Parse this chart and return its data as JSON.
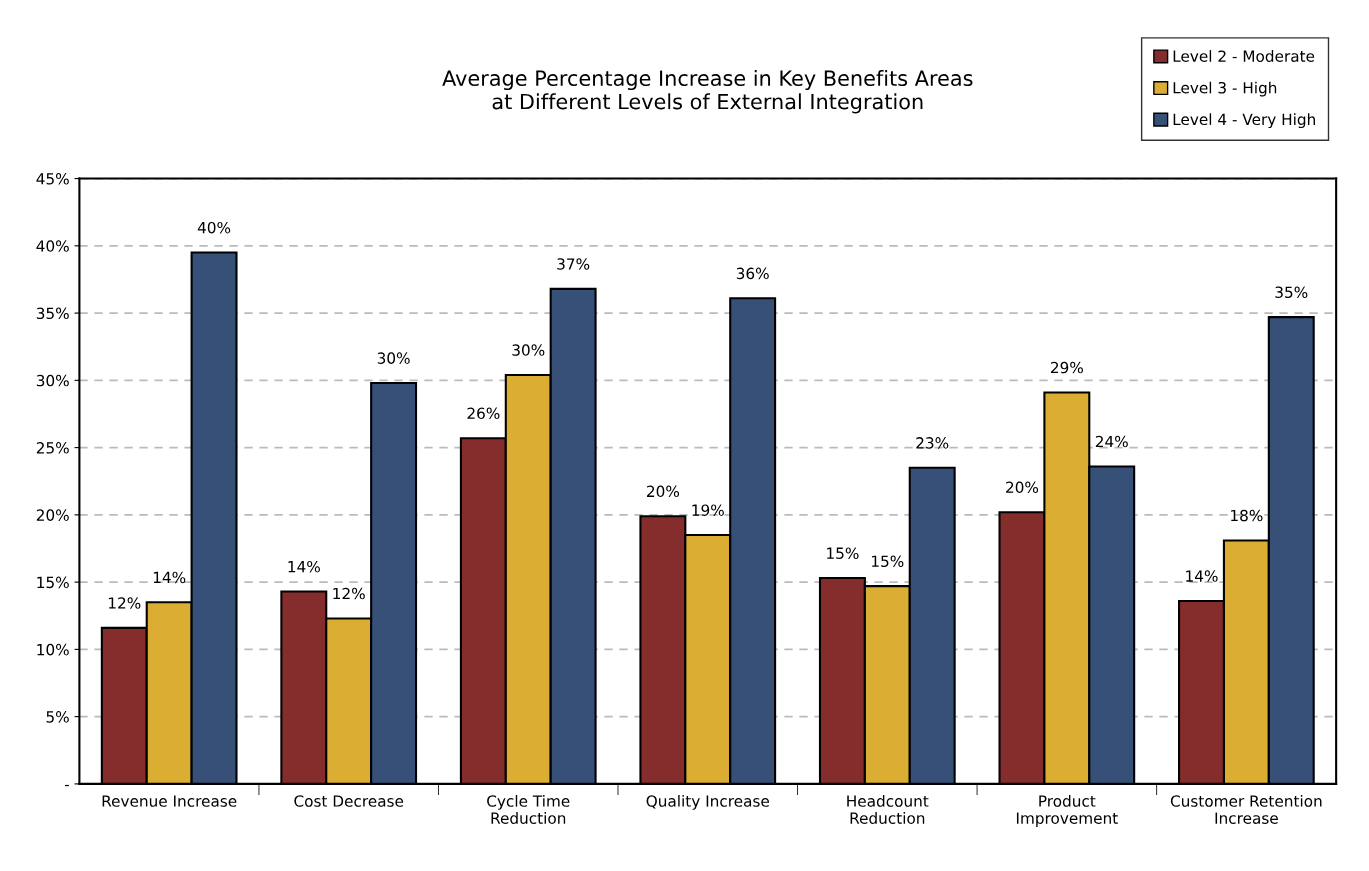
{
  "chart_data": {
    "type": "bar",
    "title": "Average Percentage Increase in Key Benefits Areas\nat Different Levels of External Integration",
    "categories": [
      "Revenue Increase",
      "Cost Decrease",
      "Cycle Time\nReduction",
      "Quality Increase",
      "Headcount\nReduction",
      "Product\nImprovement",
      "Customer Retention\nIncrease"
    ],
    "series": [
      {
        "name": "Level 2 - Moderate",
        "color": "#852c2c",
        "values": [
          11.6,
          14.3,
          25.7,
          19.9,
          15.3,
          20.2,
          13.6
        ],
        "value_labels": [
          "12%",
          "14%",
          "26%",
          "20%",
          "15%",
          "20%",
          "14%"
        ]
      },
      {
        "name": "Level 3 - High",
        "color": "#dbae33",
        "values": [
          13.5,
          12.3,
          30.4,
          18.5,
          14.7,
          29.1,
          18.1
        ],
        "value_labels": [
          "14%",
          "12%",
          "30%",
          "19%",
          "15%",
          "29%",
          "18%"
        ]
      },
      {
        "name": "Level 4 - Very High",
        "color": "#375078",
        "values": [
          39.5,
          29.8,
          36.8,
          36.1,
          23.5,
          23.6,
          34.7
        ],
        "value_labels": [
          "40%",
          "30%",
          "37%",
          "36%",
          "23%",
          "24%",
          "35%"
        ]
      }
    ],
    "ylim": [
      0,
      45
    ],
    "yticks": [
      {
        "value": 0,
        "label": "-"
      },
      {
        "value": 5,
        "label": "5%"
      },
      {
        "value": 10,
        "label": "10%"
      },
      {
        "value": 15,
        "label": "15%"
      },
      {
        "value": 20,
        "label": "20%"
      },
      {
        "value": 25,
        "label": "25%"
      },
      {
        "value": 30,
        "label": "30%"
      },
      {
        "value": 35,
        "label": "35%"
      },
      {
        "value": 40,
        "label": "40%"
      },
      {
        "value": 45,
        "label": "45%"
      }
    ],
    "grid": "y",
    "legend": "top right"
  }
}
